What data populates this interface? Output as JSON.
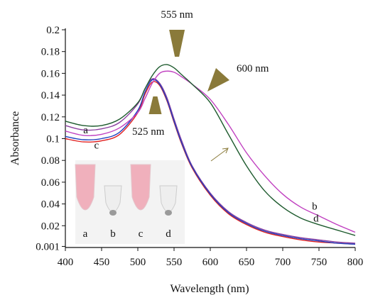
{
  "chart_data": {
    "type": "line",
    "xlabel": "Wavelength (nm)",
    "ylabel": "Absorbance",
    "xlim": [
      400,
      800
    ],
    "ylim": [
      0.001,
      0.2
    ],
    "xticks": [
      400,
      450,
      500,
      550,
      600,
      650,
      700,
      750,
      800
    ],
    "xtick_labels": [
      "400",
      "450",
      "500",
      "550",
      "600",
      "650",
      "700",
      "750",
      "800"
    ],
    "yticks": [
      0.001,
      0.02,
      0.04,
      0.06,
      0.08,
      0.1,
      0.12,
      0.14,
      0.16,
      0.18,
      0.2
    ],
    "ytick_labels": [
      "0.001",
      "0.02",
      "0.04",
      "0.06",
      "0.08",
      "0.1",
      "0.12",
      "0.14",
      "0.16",
      "0.18",
      "0.2"
    ],
    "grid": false,
    "x": [
      400,
      425,
      450,
      475,
      500,
      510,
      520,
      530,
      540,
      550,
      560,
      575,
      600,
      625,
      650,
      675,
      700,
      725,
      750,
      775,
      800
    ],
    "series": [
      {
        "name": "a",
        "color": "#8b3fa0",
        "values": [
          0.112,
          0.108,
          0.109,
          0.115,
          0.132,
          0.146,
          0.155,
          0.151,
          0.138,
          0.118,
          0.099,
          0.075,
          0.05,
          0.033,
          0.023,
          0.016,
          0.012,
          0.009,
          0.007,
          0.005,
          0.004
        ]
      },
      {
        "name": "b",
        "color": "#c040c0",
        "values": [
          0.107,
          0.103,
          0.104,
          0.11,
          0.124,
          0.137,
          0.151,
          0.16,
          0.162,
          0.161,
          0.157,
          0.15,
          0.136,
          0.113,
          0.087,
          0.066,
          0.049,
          0.037,
          0.029,
          0.021,
          0.014
        ]
      },
      {
        "name": "c",
        "color": "#e02020",
        "values": [
          0.1,
          0.097,
          0.098,
          0.104,
          0.124,
          0.141,
          0.152,
          0.149,
          0.135,
          0.115,
          0.096,
          0.073,
          0.048,
          0.031,
          0.021,
          0.014,
          0.01,
          0.007,
          0.005,
          0.004,
          0.003
        ]
      },
      {
        "name": "d",
        "color": "#1e5b2e",
        "values": [
          0.116,
          0.112,
          0.112,
          0.118,
          0.133,
          0.146,
          0.158,
          0.166,
          0.168,
          0.165,
          0.159,
          0.15,
          0.133,
          0.104,
          0.075,
          0.052,
          0.037,
          0.027,
          0.021,
          0.016,
          0.011
        ]
      }
    ],
    "blue_series": {
      "color": "#2040c0",
      "values": [
        0.102,
        0.099,
        0.1,
        0.106,
        0.126,
        0.143,
        0.154,
        0.15,
        0.136,
        0.116,
        0.097,
        0.074,
        0.049,
        0.032,
        0.022,
        0.015,
        0.011,
        0.008,
        0.006,
        0.004,
        0.003
      ]
    },
    "annotations": [
      {
        "id": "555",
        "text": "555 nm",
        "x": 555,
        "y": 0.2
      },
      {
        "id": "600",
        "text": "600 nm",
        "x": 600,
        "y": 0.15
      },
      {
        "id": "525",
        "text": "525 nm",
        "x": 525,
        "y": 0.131
      }
    ],
    "curve_labels": [
      {
        "text": "a",
        "x": 428,
        "y": 0.108
      },
      {
        "text": "c",
        "x": 443,
        "y": 0.094
      },
      {
        "text": "b",
        "x": 744,
        "y": 0.038
      },
      {
        "text": "d",
        "x": 746,
        "y": 0.027
      }
    ],
    "inset": {
      "tube_labels": [
        "a",
        "b",
        "c",
        "d"
      ],
      "tube_colors": [
        "#f0b0bc",
        "#f2f2f2",
        "#f0b0bc",
        "#f2f2f2"
      ]
    },
    "marker_color": "#8a7a3a",
    "arrow_color": "#8a7a3a"
  }
}
